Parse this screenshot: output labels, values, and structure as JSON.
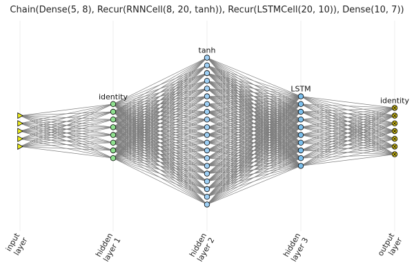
{
  "title": "Chain(Dense(5, 8), Recur(RNNCell(8, 20, tanh)), Recur(LSTMCell(20, 10)), Dense(10, 7))",
  "layers": [
    {
      "name": "input",
      "label_line1": "input",
      "label_line2": "layer",
      "activation": "",
      "units": 5,
      "marker": "triangle",
      "color": "#f2f21a"
    },
    {
      "name": "hidden-1",
      "label_line1": "hidden",
      "label_line2": "layer 1",
      "activation": "identity",
      "units": 8,
      "marker": "circle",
      "color": "#8fe08f"
    },
    {
      "name": "hidden-2",
      "label_line1": "hidden",
      "label_line2": "layer 2",
      "activation": "tanh",
      "units": 20,
      "marker": "circle",
      "color": "#9fd0f5"
    },
    {
      "name": "hidden-3",
      "label_line1": "hidden",
      "label_line2": "layer 3",
      "activation": "LSTM",
      "units": 10,
      "marker": "circle",
      "color": "#7cc0ee"
    },
    {
      "name": "output",
      "label_line1": "output",
      "label_line2": "layer",
      "activation": "identity",
      "units": 7,
      "marker": "circle-x",
      "color": "#d6c21a"
    }
  ]
}
